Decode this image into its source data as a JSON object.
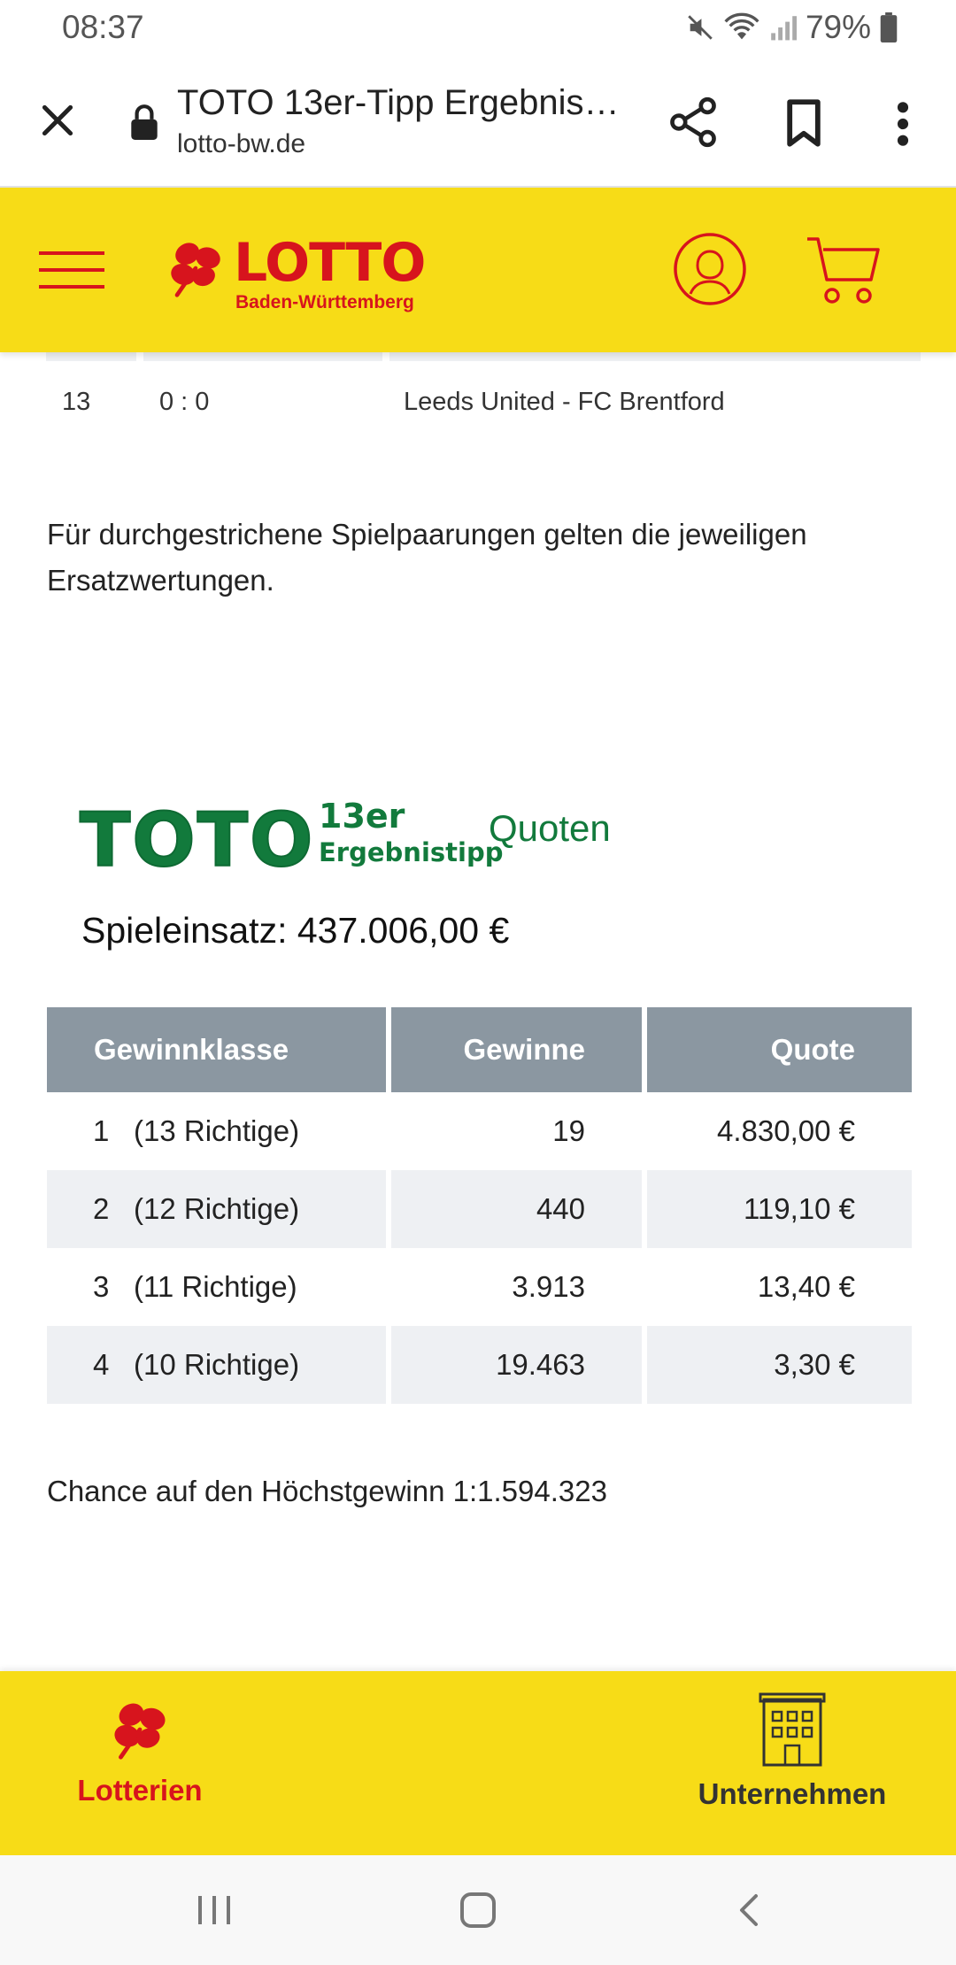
{
  "status_bar": {
    "time": "08:37",
    "battery": "79%",
    "icons": [
      "mute-icon",
      "wifi-icon",
      "signal-icon",
      "battery-icon"
    ]
  },
  "browser": {
    "title": "TOTO 13er-Tipp Ergebnis…",
    "url": "lotto-bw.de",
    "icons": [
      "close-icon",
      "lock-icon",
      "share-icon",
      "bookmark-icon",
      "more-vert-icon"
    ]
  },
  "header": {
    "brand": "LOTTO",
    "brand_sub": "Baden-Württemberg",
    "icons": [
      "hamburger-menu-icon",
      "clover-icon",
      "user-icon",
      "cart-icon"
    ],
    "brand_color": "#d7141d",
    "background": "#f7dc17"
  },
  "match": {
    "nr": "13",
    "result": "0 : 0",
    "teams": "Leeds United - FC Brentford"
  },
  "note": "Für durchgestrichene Spielpaarungen gelten die jeweiligen Ersatzwertungen.",
  "toto": {
    "logo_word": "TOTO",
    "logo_13er": "13er",
    "logo_erg": "Ergebnistipp",
    "quoten": "Quoten",
    "einsatz": "Spieleinsatz: 437.006,00 €"
  },
  "table": {
    "headers": [
      "Gewinnklasse",
      "Gewinne",
      "Quote"
    ],
    "rows": [
      {
        "klasse": "1",
        "richtige": "(13 Richtige)",
        "gewinne": "19",
        "quote": "4.830,00 €"
      },
      {
        "klasse": "2",
        "richtige": "(12 Richtige)",
        "gewinne": "440",
        "quote": "119,10 €"
      },
      {
        "klasse": "3",
        "richtige": "(11 Richtige)",
        "gewinne": "3.913",
        "quote": "13,40 €"
      },
      {
        "klasse": "4",
        "richtige": "(10 Richtige)",
        "gewinne": "19.463",
        "quote": "3,30 €"
      }
    ]
  },
  "chance": "Chance auf den Höchstgewinn 1:1.594.323",
  "bottom_nav": {
    "lotterien": "Lotterien",
    "unternehmen": "Unternehmen"
  },
  "android_nav": {
    "icons": [
      "recent-apps-icon",
      "home-icon",
      "back-icon"
    ]
  }
}
